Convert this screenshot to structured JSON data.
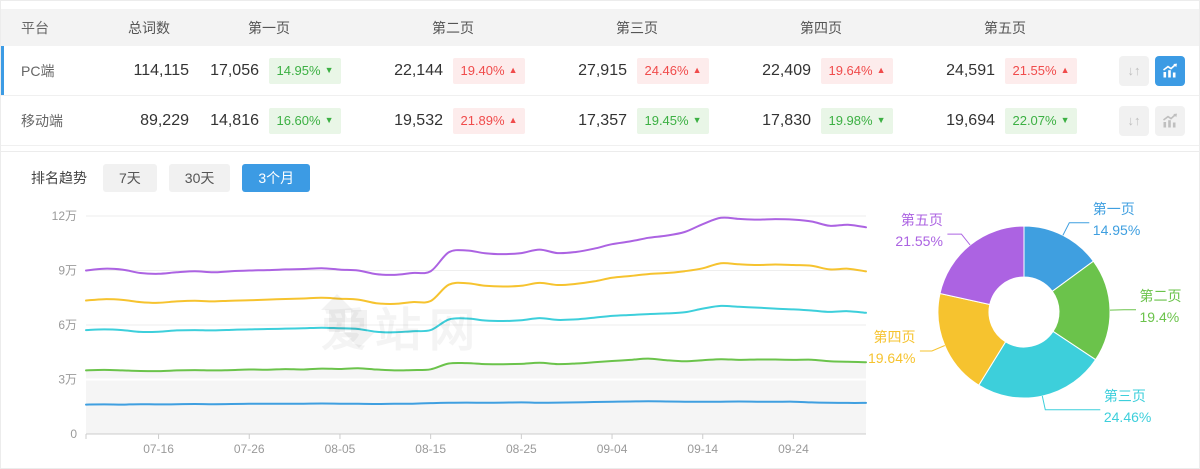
{
  "table": {
    "headers": {
      "platform": "平台",
      "total": "总词数",
      "pages": [
        "第一页",
        "第二页",
        "第三页",
        "第四页",
        "第五页"
      ]
    },
    "rows": [
      {
        "platform": "PC端",
        "total": "114,115",
        "selected": true,
        "chart_active": true,
        "pages": [
          {
            "value": "17,056",
            "pct": "14.95%",
            "dir": "down",
            "arrow": "▼"
          },
          {
            "value": "22,144",
            "pct": "19.40%",
            "dir": "up",
            "arrow": "▲"
          },
          {
            "value": "27,915",
            "pct": "24.46%",
            "dir": "up",
            "arrow": "▲"
          },
          {
            "value": "22,409",
            "pct": "19.64%",
            "dir": "up",
            "arrow": "▲"
          },
          {
            "value": "24,591",
            "pct": "21.55%",
            "dir": "up",
            "arrow": "▲"
          }
        ]
      },
      {
        "platform": "移动端",
        "total": "89,229",
        "selected": false,
        "chart_active": false,
        "pages": [
          {
            "value": "14,816",
            "pct": "16.60%",
            "dir": "down",
            "arrow": "▼"
          },
          {
            "value": "19,532",
            "pct": "21.89%",
            "dir": "up",
            "arrow": "▲"
          },
          {
            "value": "17,357",
            "pct": "19.45%",
            "dir": "down",
            "arrow": "▼"
          },
          {
            "value": "17,830",
            "pct": "19.98%",
            "dir": "down",
            "arrow": "▼"
          },
          {
            "value": "19,694",
            "pct": "22.07%",
            "dir": "down",
            "arrow": "▼"
          }
        ]
      }
    ]
  },
  "icons": {
    "sort_glyph": "↓↑"
  },
  "trend": {
    "title": "排名趋势",
    "tabs": [
      {
        "label": "7天",
        "active": false
      },
      {
        "label": "30天",
        "active": false
      },
      {
        "label": "3个月",
        "active": true
      }
    ]
  },
  "watermark_text": "爱站网",
  "colors": {
    "accent": "#3C9BE4",
    "up_red": "#F04B4B",
    "up_bg": "#fdecec",
    "down_green": "#3CB043",
    "down_bg": "#e9f6e7",
    "series": [
      "#3F9FE0",
      "#6BC34B",
      "#3DCFDB",
      "#F6C32F",
      "#AC63E2"
    ]
  },
  "chart_data": [
    {
      "type": "line",
      "title": "排名趋势（3个月，PC端，累计词数）",
      "stacked_cumulative": true,
      "x_start_date": "07-08",
      "x_step_days": 2,
      "x_ticks": [
        {
          "i": 4,
          "label": "07-16"
        },
        {
          "i": 9,
          "label": "07-26"
        },
        {
          "i": 14,
          "label": "08-05"
        },
        {
          "i": 19,
          "label": "08-15"
        },
        {
          "i": 24,
          "label": "08-25"
        },
        {
          "i": 29,
          "label": "09-04"
        },
        {
          "i": 34,
          "label": "09-14"
        },
        {
          "i": 39,
          "label": "09-24"
        }
      ],
      "y_ticks": [
        {
          "v": 0,
          "label": "0"
        },
        {
          "v": 3,
          "label": "3万"
        },
        {
          "v": 6,
          "label": "6万"
        },
        {
          "v": 9,
          "label": "9万"
        },
        {
          "v": 12,
          "label": "12万"
        }
      ],
      "y_unit": "万",
      "ylim_wan": [
        0,
        12
      ],
      "grid": true,
      "series": [
        {
          "name": "第一页",
          "color": "#3F9FE0",
          "values_wan": [
            1.62,
            1.63,
            1.62,
            1.64,
            1.63,
            1.64,
            1.65,
            1.64,
            1.65,
            1.66,
            1.67,
            1.66,
            1.67,
            1.68,
            1.67,
            1.66,
            1.65,
            1.66,
            1.67,
            1.7,
            1.72,
            1.73,
            1.72,
            1.73,
            1.74,
            1.72,
            1.73,
            1.74,
            1.76,
            1.78,
            1.79,
            1.8,
            1.79,
            1.78,
            1.77,
            1.78,
            1.79,
            1.78,
            1.77,
            1.78,
            1.74,
            1.72,
            1.71,
            1.71
          ]
        },
        {
          "name": "第二页",
          "color": "#6BC34B",
          "area_fill": "#f5f5f5",
          "values_wan": [
            3.5,
            3.53,
            3.5,
            3.47,
            3.46,
            3.5,
            3.52,
            3.5,
            3.52,
            3.55,
            3.54,
            3.57,
            3.55,
            3.6,
            3.58,
            3.62,
            3.55,
            3.5,
            3.52,
            3.56,
            3.88,
            3.9,
            3.85,
            3.84,
            3.86,
            3.92,
            3.85,
            3.88,
            3.95,
            4.02,
            4.08,
            4.15,
            4.06,
            4.0,
            4.06,
            4.12,
            4.08,
            4.1,
            4.1,
            4.08,
            4.09,
            4.0,
            3.98,
            3.95
          ]
        },
        {
          "name": "第三页",
          "color": "#3DCFDB",
          "values_wan": [
            5.72,
            5.76,
            5.72,
            5.62,
            5.63,
            5.7,
            5.72,
            5.7,
            5.73,
            5.76,
            5.78,
            5.8,
            5.82,
            5.85,
            5.82,
            5.78,
            5.63,
            5.6,
            5.66,
            5.72,
            6.3,
            6.36,
            6.25,
            6.22,
            6.26,
            6.38,
            6.28,
            6.31,
            6.4,
            6.5,
            6.55,
            6.6,
            6.64,
            6.7,
            6.9,
            7.05,
            7.0,
            6.96,
            6.9,
            6.86,
            6.8,
            6.72,
            6.76,
            6.67
          ]
        },
        {
          "name": "第四页",
          "color": "#F6C32F",
          "values_wan": [
            7.35,
            7.42,
            7.38,
            7.26,
            7.22,
            7.3,
            7.33,
            7.3,
            7.34,
            7.36,
            7.4,
            7.43,
            7.46,
            7.5,
            7.45,
            7.4,
            7.2,
            7.16,
            7.26,
            7.32,
            8.22,
            8.3,
            8.16,
            8.12,
            8.16,
            8.32,
            8.2,
            8.26,
            8.4,
            8.6,
            8.7,
            8.8,
            8.86,
            8.96,
            9.12,
            9.4,
            9.34,
            9.3,
            9.33,
            9.3,
            9.26,
            9.06,
            9.1,
            8.95
          ]
        },
        {
          "name": "第五页",
          "color": "#AC63E2",
          "values_wan": [
            9.0,
            9.1,
            9.05,
            8.86,
            8.82,
            8.9,
            8.96,
            8.9,
            8.96,
            9.0,
            9.02,
            9.06,
            9.08,
            9.12,
            9.05,
            9.0,
            8.8,
            8.76,
            8.86,
            8.96,
            10.0,
            10.1,
            9.95,
            9.9,
            9.96,
            10.15,
            9.96,
            10.02,
            10.2,
            10.45,
            10.6,
            10.8,
            10.92,
            11.12,
            11.55,
            11.9,
            11.84,
            11.8,
            11.83,
            11.8,
            11.7,
            11.46,
            11.52,
            11.38
          ]
        }
      ]
    },
    {
      "type": "pie",
      "donut": true,
      "labels": [
        "第一页",
        "第二页",
        "第三页",
        "第四页",
        "第五页"
      ],
      "values": [
        14.95,
        19.4,
        24.46,
        19.64,
        21.55
      ],
      "display": [
        "14.95%",
        "19.4%",
        "24.46%",
        "19.64%",
        "21.55%"
      ],
      "colors": [
        "#3F9FE0",
        "#6BC34B",
        "#3DCFDB",
        "#F6C32F",
        "#AC63E2"
      ]
    }
  ]
}
